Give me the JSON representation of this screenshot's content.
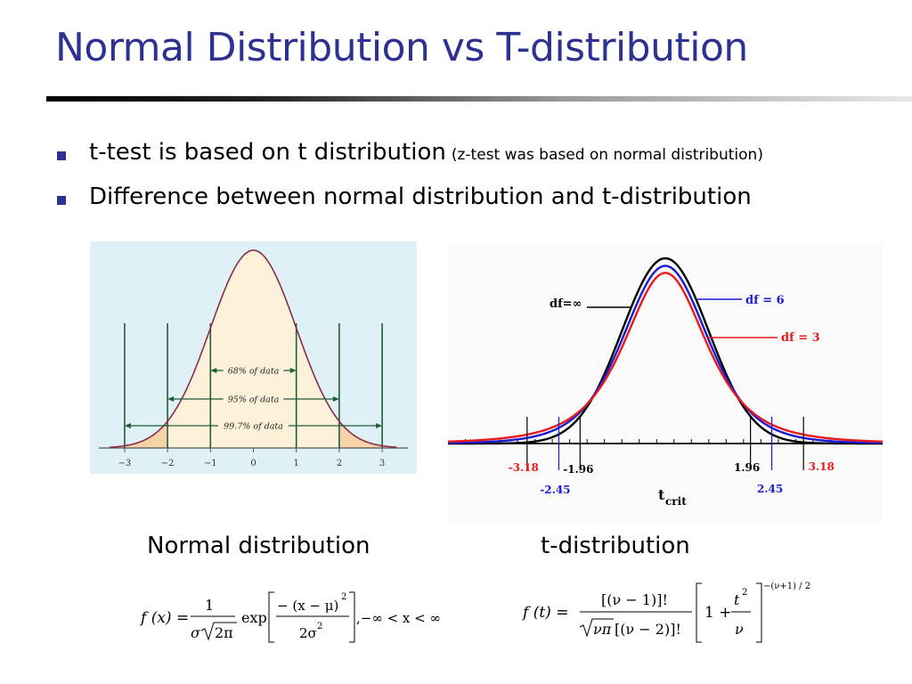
{
  "slide": {
    "title": "Normal Distribution vs T-distribution",
    "accent_color": "#2e3192"
  },
  "bullets": [
    {
      "text": "t-test is based on t distribution",
      "note": "(z-test was based on normal distribution)"
    },
    {
      "text": "Difference between normal distribution and t-distribution",
      "note": ""
    }
  ],
  "captions": {
    "left": "Normal distribution",
    "right": "t-distribution"
  },
  "normal_figure": {
    "fill_color": "#fdf2d9",
    "tail_color": "#f7d3a8",
    "curve_color": "#8b2b4c",
    "line_color": "#1f5d3c",
    "bands": [
      {
        "label": "68% of data",
        "from": -1,
        "to": 1
      },
      {
        "label": "95% of data",
        "from": -2,
        "to": 2
      },
      {
        "label": "99.7% of data",
        "from": -3,
        "to": 3
      }
    ]
  },
  "t_figure": {
    "curve_labels": {
      "normal": "df=∞",
      "df6": "df = 6",
      "df3": "df = 3"
    },
    "xlabel_main": "t",
    "xlabel_sub": "crit",
    "crit_labels": {
      "neg_318": "-3.18",
      "neg_196": "-1.96",
      "neg_245": "-2.45",
      "pos_196": "1.96",
      "pos_318": "3.18",
      "pos_245": "2.45"
    }
  },
  "formula_normal": {
    "lhs": "f (x) =",
    "num": "1",
    "den_sigma": "σ",
    "den_root": "2π",
    "exp": "exp",
    "inner_num": "− (x − μ)",
    "inner_num_pow": "2",
    "inner_den": "2σ",
    "inner_den_pow": "2",
    "range": ",−∞ < x < ∞"
  },
  "formula_t": {
    "lhs": "f (t) =",
    "num": "[(ν − 1)]!",
    "den_root": "νπ",
    "den_rest": "[(ν − 2)]!",
    "one_plus": "1 +",
    "t2_num": "t",
    "t2_pow": "2",
    "t2_den": "ν",
    "outer_pow": "−(ν+1) / 2"
  },
  "chart_data": [
    {
      "type": "line",
      "title": "",
      "series": [
        {
          "name": "",
          "distribution": "standard normal",
          "mean": 0,
          "sd": 1
        }
      ],
      "x_ticks": [
        "−3",
        "−2",
        "−1",
        "0",
        "1",
        "2",
        "3"
      ],
      "xlim": [
        -3.6,
        3.6
      ],
      "annotations": [
        "68% of data",
        "95% of data",
        "99.7% of data"
      ],
      "band_ranges": [
        [
          -1,
          1
        ],
        [
          -2,
          2
        ],
        [
          -3,
          3
        ]
      ]
    },
    {
      "type": "line",
      "title": "",
      "series": [
        {
          "name": "df=∞",
          "color": "#000000",
          "df": "inf"
        },
        {
          "name": "df = 6",
          "color": "#1a1ad6",
          "df": 6
        },
        {
          "name": "df = 3",
          "color": "#e81a1a",
          "df": 3
        }
      ],
      "xlabel": "tcrit",
      "critical_values": [
        -3.18,
        -2.45,
        -1.96,
        1.96,
        2.45,
        3.18
      ],
      "xlim": [
        -5,
        5
      ]
    }
  ]
}
